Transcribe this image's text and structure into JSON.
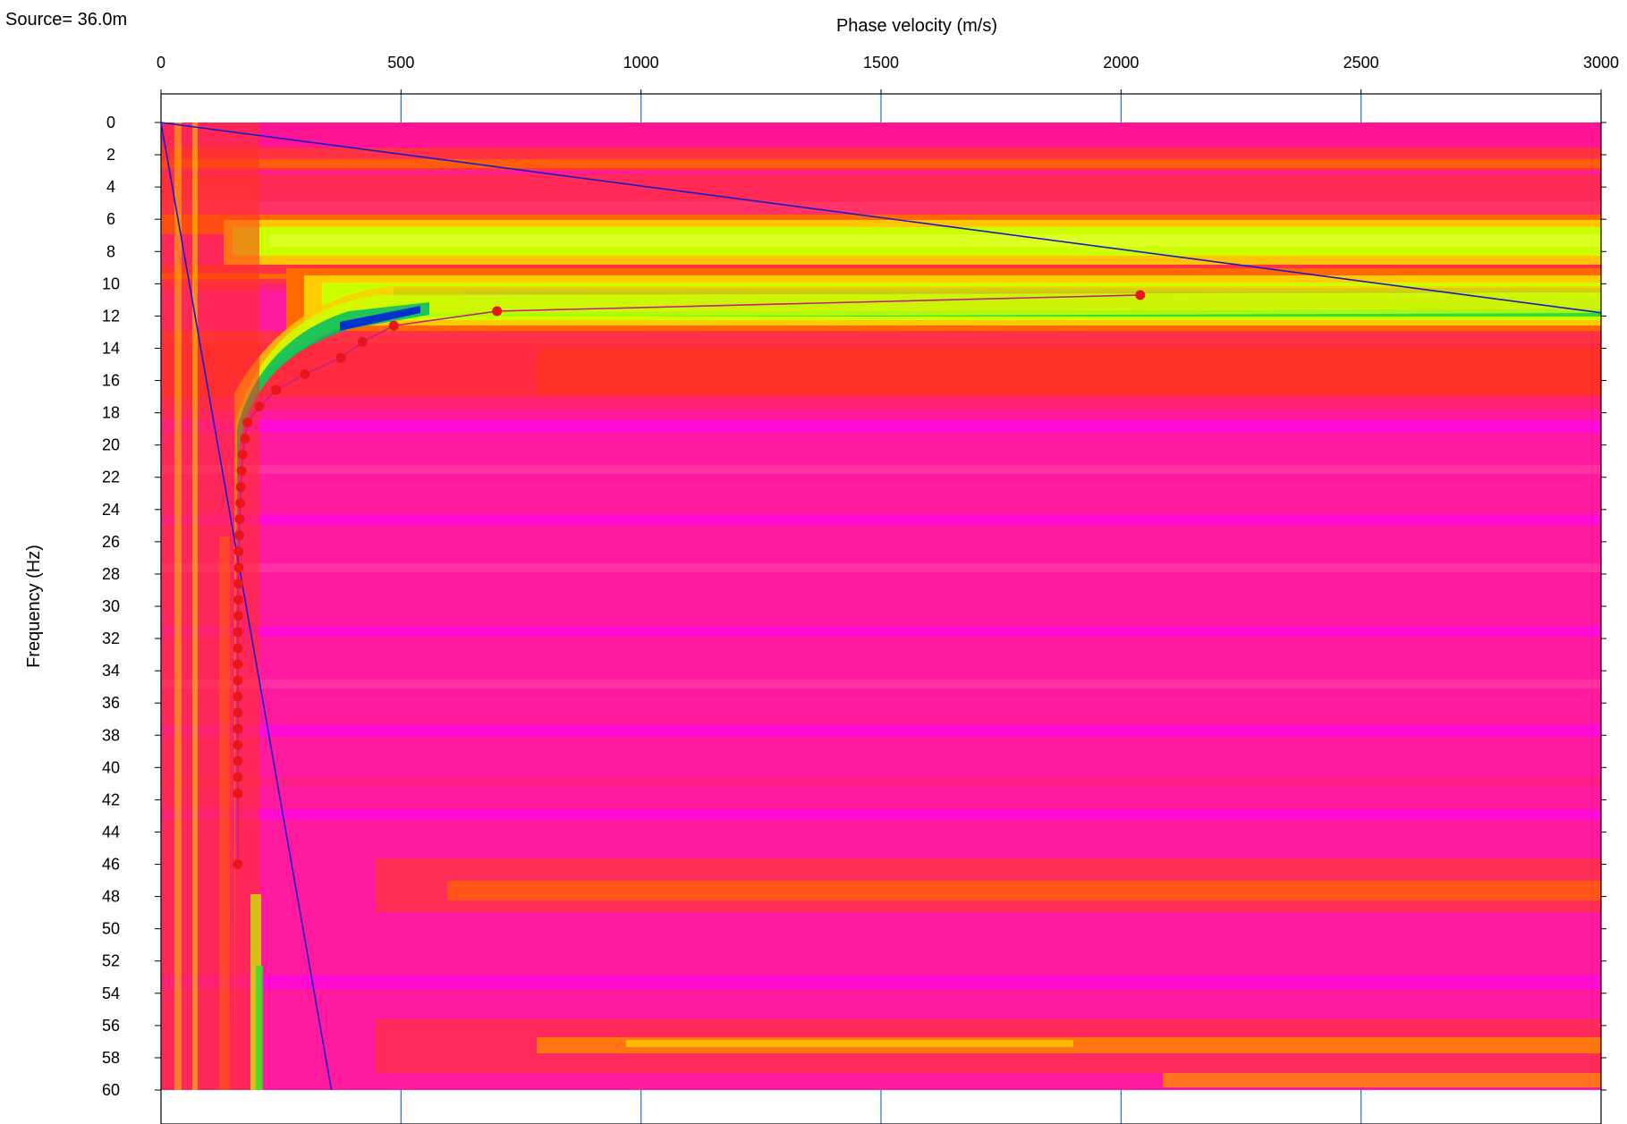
{
  "source_label": "Source= 36.0m",
  "chart_data": {
    "type": "heatmap",
    "title": "",
    "xlabel": "Phase velocity (m/s)",
    "ylabel": "Frequency (Hz)",
    "xlim": [
      0,
      3000
    ],
    "ylim": [
      0,
      60
    ],
    "x_axis_position": "top",
    "y_axis_inverted": true,
    "x_ticks": [
      0,
      500,
      1000,
      1500,
      2000,
      2500,
      3000
    ],
    "y_ticks": [
      0,
      2,
      4,
      6,
      8,
      10,
      12,
      14,
      16,
      18,
      20,
      22,
      24,
      26,
      28,
      30,
      32,
      34,
      36,
      38,
      40,
      42,
      44,
      46,
      48,
      50,
      52,
      54,
      56,
      58,
      60
    ],
    "grid": "vertical lines at x ticks",
    "colormap": [
      "#ff00cc",
      "#ff1a8c",
      "#ff3333",
      "#ff6600",
      "#ffcc00",
      "#ccff00",
      "#33ff33",
      "#00cc99",
      "#0033cc"
    ],
    "colors": {
      "background": "#ff1493",
      "grid": "#1e6fd8",
      "limit_lines": "#1a1acc",
      "picked_points": "#e8161b",
      "picked_curve": "#c0208a"
    },
    "dispersion_picks": {
      "name": "",
      "x": [
        2040,
        700,
        485,
        420,
        375,
        300,
        240,
        205,
        180,
        175,
        170,
        168,
        166,
        165,
        164,
        163,
        162,
        162,
        161,
        161,
        161,
        160,
        160,
        160,
        160,
        160,
        160,
        160,
        160,
        160,
        160,
        160,
        160
      ],
      "y": [
        10.7,
        11.7,
        12.6,
        13.6,
        14.6,
        15.6,
        16.6,
        17.6,
        18.6,
        19.6,
        20.6,
        21.6,
        22.6,
        23.6,
        24.6,
        25.6,
        26.6,
        27.6,
        28.6,
        29.6,
        30.6,
        31.6,
        32.6,
        33.6,
        34.6,
        35.6,
        36.6,
        37.6,
        38.6,
        39.6,
        40.6,
        41.6,
        46.0
      ]
    },
    "limit_lines": [
      {
        "x": [
          0,
          3000
        ],
        "y": [
          0,
          11.8
        ]
      },
      {
        "x": [
          0,
          355
        ],
        "y": [
          0,
          60
        ]
      }
    ]
  }
}
